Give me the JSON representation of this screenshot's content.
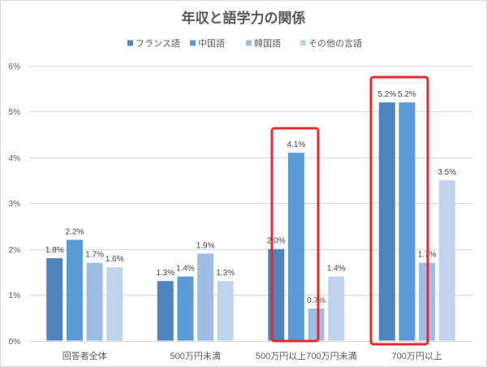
{
  "chart_data": {
    "type": "bar",
    "title": "年収と語学力の関係",
    "categories": [
      "回答者全体",
      "500万円未満",
      "500万円以上700万円未満",
      "700万円以上"
    ],
    "series": [
      {
        "name": "フランス語",
        "values": [
          1.8,
          1.3,
          2.0,
          5.2
        ],
        "labels": [
          "1.8%",
          "1.3%",
          "2.0%",
          "5.2%"
        ],
        "color": "#4f84bd"
      },
      {
        "name": "中国語",
        "values": [
          2.2,
          1.4,
          4.1,
          5.2
        ],
        "labels": [
          "2.2%",
          "1.4%",
          "4.1%",
          "5.2%"
        ],
        "color": "#5b9bd5"
      },
      {
        "name": "韓国語",
        "values": [
          1.7,
          1.9,
          0.7,
          1.7
        ],
        "labels": [
          "1.7%",
          "1.9%",
          "0.7%",
          "1.7%"
        ],
        "color": "#9ebde4"
      },
      {
        "name": "その他の言語",
        "values": [
          1.6,
          1.3,
          1.4,
          3.5
        ],
        "labels": [
          "1.6%",
          "1.3%",
          "1.4%",
          "3.5%"
        ],
        "color": "#bfd3ed"
      }
    ],
    "ylim": [
      0,
      6
    ],
    "yticks": [
      0,
      1,
      2,
      3,
      4,
      5,
      6
    ],
    "ytick_labels": [
      "0%",
      "1%",
      "2%",
      "3%",
      "4%",
      "5%",
      "6%"
    ],
    "grid": true,
    "legend": "top",
    "highlight_color": "#e42a2a"
  }
}
